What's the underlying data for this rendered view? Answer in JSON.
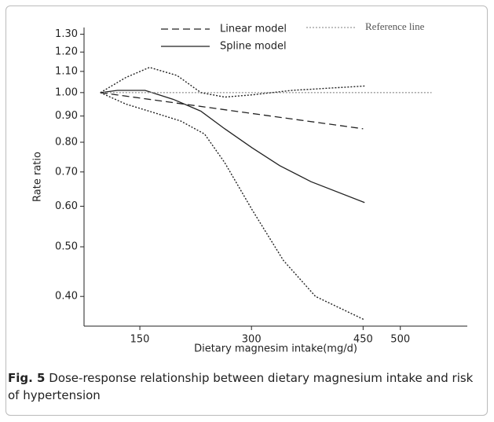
{
  "chart_data": {
    "type": "line",
    "x_label": "Dietary magnesim intake(mg/d)",
    "y_label": "Rate ratio",
    "caption_label": "Fig. 5",
    "caption": "Dose-response relationship between dietary magnesium intake and risk of hypertension",
    "log_y": true,
    "xlim": [
      75,
      590
    ],
    "xticks": [
      150,
      300,
      450,
      500
    ],
    "ylim": [
      0.35,
      1.34
    ],
    "yticks": [
      {
        "value": 1.3,
        "label": "1.30"
      },
      {
        "value": 1.2,
        "label": "1.20"
      },
      {
        "value": 1.1,
        "label": "1.10"
      },
      {
        "value": 1.0,
        "label": "1.00"
      },
      {
        "value": 0.9,
        "label": "0.90"
      },
      {
        "value": 0.8,
        "label": "0.80"
      },
      {
        "value": 0.7,
        "label": "0.70"
      },
      {
        "value": 0.6,
        "label": "0.60"
      },
      {
        "value": 0.5,
        "label": "0.50"
      },
      {
        "value": 0.4,
        "label": "0.40"
      }
    ],
    "series": [
      {
        "name": "Linear model",
        "style": "dashed",
        "color": "#222",
        "x": [
          97,
          450
        ],
        "values": [
          1.0,
          0.85
        ]
      },
      {
        "name": "Spline model",
        "style": "solid",
        "color": "#222",
        "x": [
          97,
          120,
          157,
          195,
          232,
          264,
          301,
          338,
          380,
          452
        ],
        "values": [
          1.0,
          1.01,
          1.01,
          0.97,
          0.92,
          0.85,
          0.78,
          0.72,
          0.67,
          0.61
        ]
      },
      {
        "name": "Reference line",
        "style": "dotted",
        "color": "#999",
        "x": [
          97,
          542
        ],
        "values": [
          1.0,
          1.0
        ]
      },
      {
        "style": "dotted",
        "color": "#222",
        "x": [
          97,
          131,
          163,
          200,
          232,
          264,
          301,
          354,
          452
        ],
        "values": [
          1.0,
          1.07,
          1.12,
          1.08,
          1.0,
          0.98,
          0.99,
          1.01,
          1.03
        ]
      },
      {
        "style": "dotted",
        "color": "#222",
        "x": [
          97,
          131,
          173,
          205,
          237,
          264,
          301,
          343,
          386,
          452
        ],
        "values": [
          1.0,
          0.95,
          0.91,
          0.88,
          0.83,
          0.73,
          0.59,
          0.47,
          0.4,
          0.36
        ]
      }
    ]
  }
}
